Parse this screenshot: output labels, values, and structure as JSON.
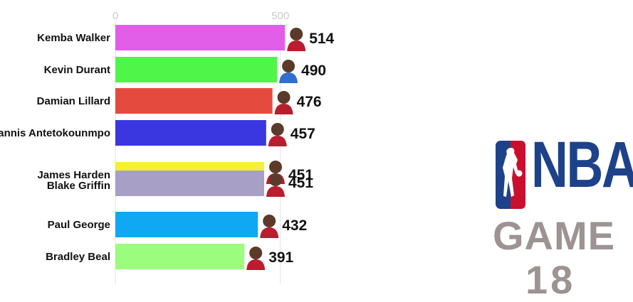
{
  "chart_data": {
    "type": "bar",
    "orientation": "horizontal",
    "categories": [
      "Kemba Walker",
      "Kevin Durant",
      "Damian Lillard",
      "Giannis Antetokounmpo",
      "James Harden",
      "Blake Griffin",
      "Paul George",
      "Bradley Beal"
    ],
    "values": [
      514,
      490,
      476,
      457,
      451,
      451,
      432,
      391
    ],
    "value_labels": [
      "514",
      "490",
      "476",
      "457",
      "451",
      "451",
      "432",
      "391"
    ],
    "colors": [
      "#e35ee8",
      "#50f54a",
      "#e54a3f",
      "#3a36e0",
      "#f5f032",
      "#a89fc7",
      "#10a8f2",
      "#9cfc7e"
    ],
    "xticks": [
      0,
      500
    ],
    "xtick_labels": [
      "0",
      "500"
    ],
    "xlim": [
      0,
      514
    ],
    "grid": true,
    "title": "",
    "xlabel": "",
    "ylabel": ""
  },
  "logo": {
    "brand": "NBA",
    "label": "GAME",
    "number": "18",
    "brand_color": "#1d428a",
    "accent_color": "#c8102e",
    "label_color": "#9c9392"
  },
  "avatars": [
    "player-headshot-icon"
  ]
}
